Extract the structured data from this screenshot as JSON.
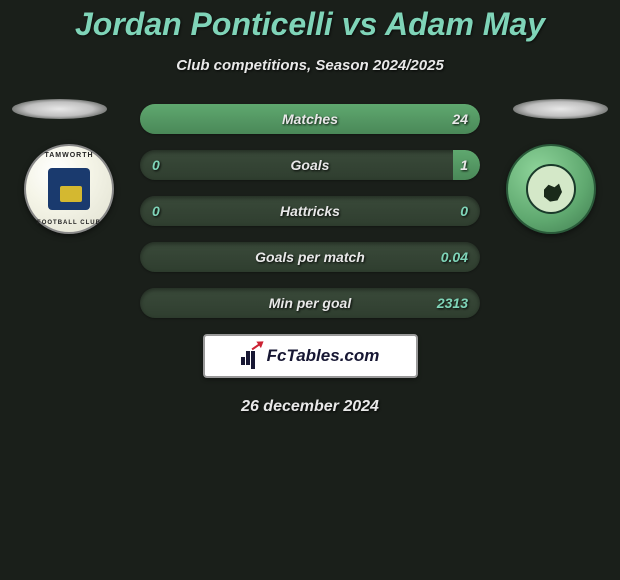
{
  "title": "Jordan Ponticelli vs Adam May",
  "subtitle": "Club competitions, Season 2024/2025",
  "date": "26 december 2024",
  "footer_brand": "FcTables.com",
  "colors": {
    "bar_bg": "#3a4a3a",
    "bar_bg_alt": "#2f3e2f",
    "fill_green": "#5fa86f",
    "fill_green_dark": "#4a8858",
    "text_white": "#e8e8e8",
    "text_green": "#7fd4b8"
  },
  "stats": [
    {
      "label": "Matches",
      "left_value": "",
      "right_value": "24",
      "left_pct": 0,
      "right_pct": 100,
      "left_color_class": "white-text",
      "right_color_class": "white-text"
    },
    {
      "label": "Goals",
      "left_value": "0",
      "right_value": "1",
      "left_pct": 0,
      "right_pct": 8,
      "left_color_class": "green-text",
      "right_color_class": "white-text"
    },
    {
      "label": "Hattricks",
      "left_value": "0",
      "right_value": "0",
      "left_pct": 0,
      "right_pct": 0,
      "left_color_class": "green-text",
      "right_color_class": "green-text"
    },
    {
      "label": "Goals per match",
      "left_value": "",
      "right_value": "0.04",
      "left_pct": 0,
      "right_pct": 0,
      "left_color_class": "white-text",
      "right_color_class": "green-text"
    },
    {
      "label": "Min per goal",
      "left_value": "",
      "right_value": "2313",
      "left_pct": 0,
      "right_pct": 0,
      "left_color_class": "white-text",
      "right_color_class": "green-text"
    }
  ],
  "team_left": {
    "name": "Tamworth Football Club"
  },
  "team_right": {
    "name": "Forest Green Rovers"
  }
}
